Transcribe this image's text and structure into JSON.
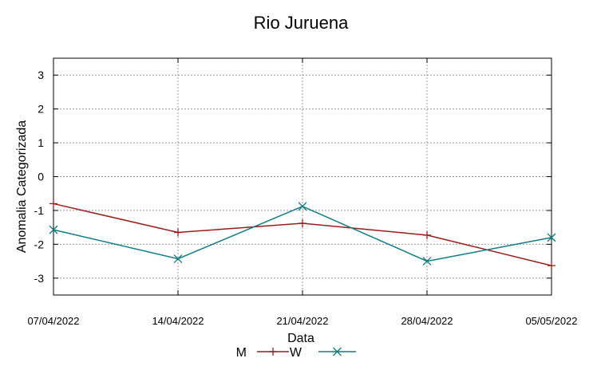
{
  "chart_data": {
    "type": "line",
    "title": "Rio Juruena",
    "xlabel": "Data",
    "ylabel": "Anomalia Categorizada",
    "categories": [
      "07/04/2022",
      "14/04/2022",
      "21/04/2022",
      "28/04/2022",
      "05/05/2022"
    ],
    "ylim": [
      -3.5,
      3.5
    ],
    "yticks": [
      "3",
      "2",
      "1",
      "0",
      "-1",
      "-2",
      "-3"
    ],
    "grid": true,
    "legend_position": "bottom-center",
    "series": [
      {
        "name": "M",
        "color": "#9b1b1b",
        "marker": "plus",
        "values": [
          -0.8,
          -1.65,
          -1.38,
          -1.73,
          -2.63
        ]
      },
      {
        "name": "W",
        "color": "#0f7d80",
        "marker": "cross",
        "values": [
          -1.57,
          -2.43,
          -0.88,
          -2.5,
          -1.8
        ]
      }
    ]
  }
}
